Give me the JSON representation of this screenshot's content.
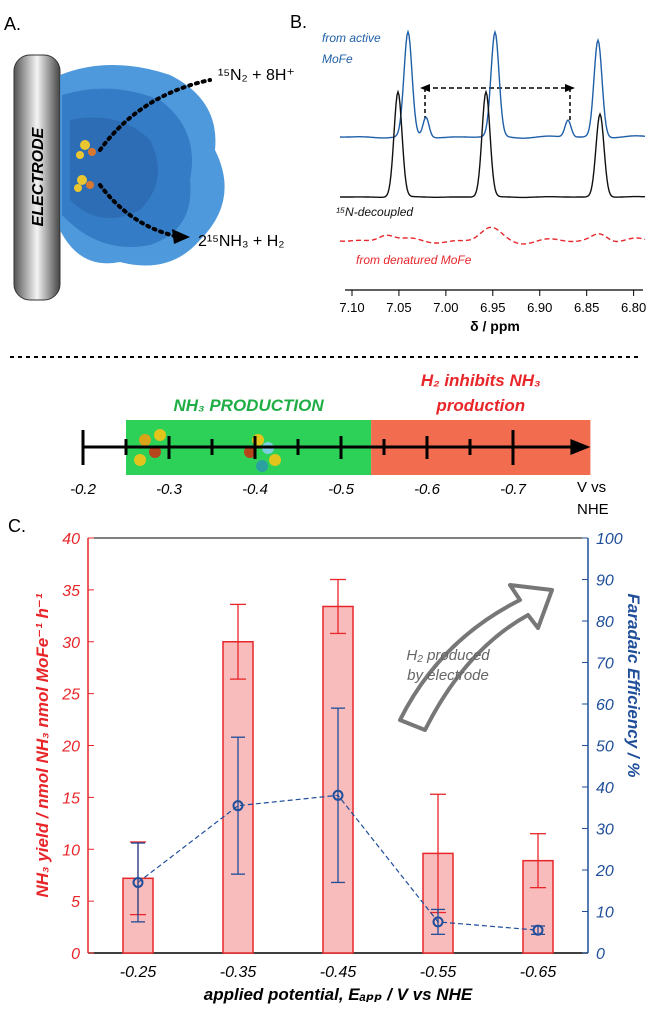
{
  "panel_a": {
    "label": "A.",
    "electrode": "ELECTRODE",
    "reactants": "¹⁵N₂ + 8H⁺",
    "products": "2¹⁵NH₃ + H₂"
  },
  "panel_b": {
    "label": "B.",
    "xlabel": "δ / ppm",
    "xlim": [
      7.1,
      6.79
    ],
    "xticks": [
      {
        "value": 7.1,
        "label": "7.10"
      },
      7.05,
      {
        "value": 7.0,
        "label": "7.00"
      },
      6.95,
      {
        "value": 6.9,
        "label": "6.90"
      },
      6.85,
      {
        "value": 6.8,
        "label": "6.80"
      }
    ],
    "traces": [
      {
        "labels": [
          "from active",
          "MoFe"
        ],
        "color": "#1f5fa8"
      },
      {
        "labels": [
          "¹⁵N-decoupled"
        ],
        "color": "#111111"
      },
      {
        "labels": [
          "from denatured MoFe"
        ],
        "color": "#e8262a"
      }
    ]
  },
  "scale": {
    "xlim": [
      -0.2,
      -0.79
    ],
    "xticks": [
      -0.2,
      -0.3,
      -0.4,
      -0.5,
      -0.6,
      -0.7
    ],
    "minor_ticks": [
      -0.25,
      -0.35,
      -0.45,
      -0.55,
      -0.65
    ],
    "unit": [
      "V vs",
      "NHE"
    ],
    "regions": [
      {
        "title": [
          "NH₃ PRODUCTION"
        ],
        "range": [
          -0.25,
          -0.535
        ],
        "color": "#2ed158",
        "title_color": "#1fae45"
      },
      {
        "title": [
          "H₂ inhibits NH₃",
          "production"
        ],
        "range": [
          -0.535,
          -0.79
        ],
        "color": "#f26d4f",
        "title_color": "#e8262a"
      }
    ]
  },
  "chart_data": {
    "type": "bar",
    "label": "C.",
    "categories": [
      "-0.25",
      "-0.35",
      "-0.45",
      "-0.55",
      "-0.65"
    ],
    "series": [
      {
        "values": [
          7.2,
          30.0,
          33.4,
          9.6,
          8.9
        ],
        "errors": [
          3.5,
          3.6,
          2.6,
          5.7,
          2.6
        ],
        "color": "#e8262a",
        "fill": "#f9bcbc"
      },
      {
        "type": "line",
        "axis": "y2",
        "values": [
          17,
          35.5,
          38,
          7.5,
          5.5
        ],
        "errors": [
          9.5,
          16.5,
          21,
          3,
          1
        ],
        "color": "#1f4e9a"
      }
    ],
    "ylim": [
      0,
      40
    ],
    "yticks": [
      0,
      5,
      10,
      15,
      20,
      25,
      30,
      35,
      40
    ],
    "y2lim": [
      0,
      100
    ],
    "y2ticks": [
      0,
      10,
      20,
      30,
      40,
      50,
      60,
      70,
      80,
      90,
      100
    ],
    "ylabel": "NH₃ yield / nmol NH₃ nmol MoFe⁻¹ h⁻¹",
    "y2label": "Faradaic Efficiency / %",
    "xlabel": "applied potential, Eₐₚₚ / V vs NHE",
    "annotation": [
      "H₂ produced",
      "by electrode"
    ]
  }
}
